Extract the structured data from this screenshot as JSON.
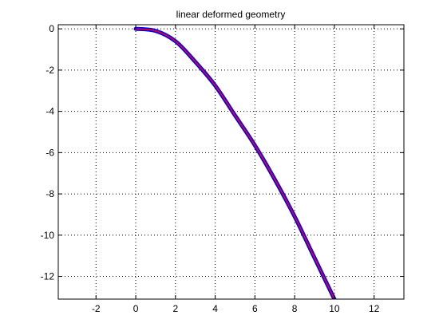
{
  "chart_data": {
    "type": "line",
    "title": "linear deformed geometry",
    "xlabel": "",
    "ylabel": "",
    "xlim": [
      -3.9,
      13.5
    ],
    "ylim": [
      -13.1,
      0.2
    ],
    "xticks": [
      -2,
      0,
      2,
      4,
      6,
      8,
      10,
      12
    ],
    "yticks": [
      0,
      -2,
      -4,
      -6,
      -8,
      -10,
      -12
    ],
    "xtick_labels": [
      "-2",
      "0",
      "2",
      "4",
      "6",
      "8",
      "10",
      "12"
    ],
    "ytick_labels": [
      "0",
      "-2",
      "-4",
      "-6",
      "-8",
      "-10",
      "-12"
    ],
    "grid": true,
    "grid_style": "dotted",
    "series": [
      {
        "color": "#0000ff",
        "points": [
          [
            0,
            0
          ],
          [
            1,
            -0.1
          ],
          [
            2,
            -0.6
          ],
          [
            3,
            -1.6
          ],
          [
            4,
            -2.75
          ],
          [
            5,
            -4.2
          ],
          [
            6,
            -5.65
          ],
          [
            7,
            -7.3
          ],
          [
            8,
            -9.1
          ],
          [
            9,
            -11.1
          ],
          [
            10,
            -13.1
          ]
        ]
      },
      {
        "color": "#ff0000",
        "points": [
          [
            0,
            0
          ],
          [
            1,
            -0.1
          ],
          [
            2,
            -0.6
          ],
          [
            3,
            -1.6
          ],
          [
            4,
            -2.75
          ],
          [
            5,
            -4.2
          ],
          [
            6,
            -5.65
          ],
          [
            7,
            -7.3
          ],
          [
            8,
            -9.1
          ],
          [
            9,
            -11.1
          ],
          [
            10,
            -13.1
          ]
        ]
      }
    ]
  }
}
